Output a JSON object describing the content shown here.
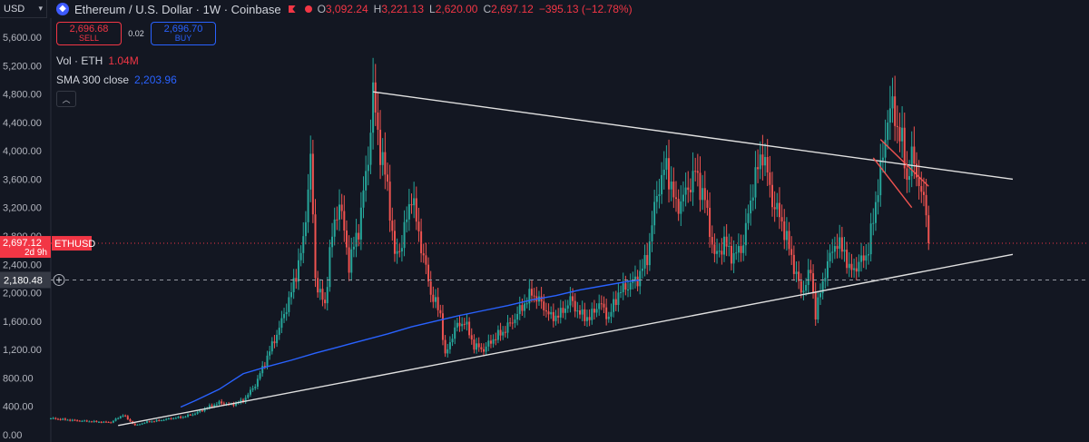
{
  "currency": {
    "label": "USD",
    "chevron_icon": "chevron-down-icon"
  },
  "header": {
    "symbol": "Ethereum / U.S. Dollar · 1W · Coinbase",
    "logo_icon": "ethereum-logo-icon",
    "flag_icon": "flag-icon",
    "ohlc": [
      {
        "label": "O",
        "value": "3,092.24"
      },
      {
        "label": "H",
        "value": "3,221.13"
      },
      {
        "label": "L",
        "value": "2,620.00"
      },
      {
        "label": "C",
        "value": "2,697.12"
      }
    ],
    "change": "−395.13 (−12.78%)"
  },
  "trade": {
    "sell_price": "2,696.68",
    "sell_label": "SELL",
    "spread": "0.02",
    "buy_price": "2,696.70",
    "buy_label": "BUY"
  },
  "indicators": {
    "volume": {
      "label": "Vol · ETH",
      "value": "1.04M"
    },
    "sma": {
      "label": "SMA 300 close",
      "value": "2,203.96"
    }
  },
  "colors": {
    "background": "#131722",
    "up": "#26a69a",
    "down": "#ef5350",
    "sma": "#2962ff",
    "price_marker": "#f23645",
    "text": "#b2b5be"
  },
  "chart_data": {
    "type": "candlestick",
    "yaxis": {
      "ticks": [
        "5,600.00",
        "5,200.00",
        "4,800.00",
        "4,400.00",
        "4,000.00",
        "3,600.00",
        "3,200.00",
        "2,800.00",
        "2,400.00",
        "2,000.00",
        "1,600.00",
        "1,200.00",
        "800.00",
        "400.00",
        "0.00"
      ],
      "values": [
        5600,
        5200,
        4800,
        4400,
        4000,
        3600,
        3200,
        2800,
        2400,
        2000,
        1600,
        1200,
        800,
        400,
        0
      ],
      "ylim": [
        0,
        5600
      ]
    },
    "price_marker": {
      "symbol": "ETHUSD",
      "value": "2,697.12",
      "countdown": "2d 9h",
      "price": 2697.12
    },
    "crosshair": {
      "value": "2,180.48",
      "price": 2180.48,
      "add_icon": "plus-circle-icon"
    },
    "anchors": [
      [
        0,
        230
      ],
      [
        10,
        200
      ],
      [
        20,
        180
      ],
      [
        25,
        175
      ],
      [
        30,
        280
      ],
      [
        35,
        130
      ],
      [
        40,
        180
      ],
      [
        45,
        200
      ],
      [
        50,
        230
      ],
      [
        55,
        250
      ],
      [
        60,
        300
      ],
      [
        65,
        380
      ],
      [
        70,
        450
      ],
      [
        75,
        420
      ],
      [
        80,
        480
      ],
      [
        85,
        700
      ],
      [
        90,
        1100
      ],
      [
        95,
        1500
      ],
      [
        100,
        2000
      ],
      [
        105,
        2700
      ],
      [
        108,
        3900
      ],
      [
        110,
        2200
      ],
      [
        114,
        1800
      ],
      [
        116,
        2600
      ],
      [
        120,
        3300
      ],
      [
        124,
        2400
      ],
      [
        128,
        2900
      ],
      [
        132,
        3900
      ],
      [
        134,
        4800
      ],
      [
        137,
        4000
      ],
      [
        140,
        3500
      ],
      [
        143,
        2500
      ],
      [
        146,
        2700
      ],
      [
        150,
        3400
      ],
      [
        152,
        3000
      ],
      [
        155,
        2500
      ],
      [
        158,
        2000
      ],
      [
        162,
        1700
      ],
      [
        164,
        1100
      ],
      [
        168,
        1500
      ],
      [
        172,
        1600
      ],
      [
        176,
        1250
      ],
      [
        180,
        1200
      ],
      [
        184,
        1350
      ],
      [
        188,
        1450
      ],
      [
        192,
        1600
      ],
      [
        196,
        1800
      ],
      [
        200,
        2000
      ],
      [
        204,
        1850
      ],
      [
        208,
        1650
      ],
      [
        212,
        1700
      ],
      [
        216,
        1900
      ],
      [
        220,
        1700
      ],
      [
        224,
        1640
      ],
      [
        228,
        1860
      ],
      [
        232,
        1650
      ],
      [
        236,
        2000
      ],
      [
        240,
        2100
      ],
      [
        244,
        2200
      ],
      [
        248,
        2500
      ],
      [
        252,
        3400
      ],
      [
        256,
        3800
      ],
      [
        260,
        3200
      ],
      [
        264,
        3400
      ],
      [
        268,
        3700
      ],
      [
        272,
        3300
      ],
      [
        276,
        2500
      ],
      [
        280,
        2700
      ],
      [
        284,
        2500
      ],
      [
        288,
        2700
      ],
      [
        292,
        3500
      ],
      [
        296,
        4000
      ],
      [
        300,
        3300
      ],
      [
        304,
        3000
      ],
      [
        308,
        2500
      ],
      [
        312,
        2000
      ],
      [
        316,
        2300
      ],
      [
        318,
        1700
      ],
      [
        322,
        2300
      ],
      [
        326,
        2700
      ],
      [
        330,
        2600
      ],
      [
        332,
        2300
      ],
      [
        336,
        2400
      ],
      [
        340,
        2600
      ],
      [
        344,
        3500
      ],
      [
        346,
        3900
      ],
      [
        348,
        4500
      ],
      [
        350,
        4600
      ],
      [
        354,
        4100
      ],
      [
        356,
        3600
      ],
      [
        358,
        3900
      ],
      [
        360,
        3700
      ],
      [
        362,
        3400
      ],
      [
        364,
        3092
      ],
      [
        365,
        2697
      ]
    ],
    "sma300": [
      [
        54,
        390
      ],
      [
        60,
        480
      ],
      [
        70,
        640
      ],
      [
        80,
        860
      ],
      [
        90,
        960
      ],
      [
        100,
        1050
      ],
      [
        110,
        1150
      ],
      [
        120,
        1240
      ],
      [
        130,
        1330
      ],
      [
        140,
        1420
      ],
      [
        150,
        1520
      ],
      [
        160,
        1600
      ],
      [
        170,
        1680
      ],
      [
        180,
        1750
      ],
      [
        190,
        1820
      ],
      [
        200,
        1900
      ],
      [
        210,
        1960
      ],
      [
        220,
        2040
      ],
      [
        230,
        2100
      ],
      [
        240,
        2160
      ],
      [
        245,
        2180
      ]
    ],
    "trendlines": [
      {
        "name": "upper-resistance-line",
        "from": [
          134,
          4830
        ],
        "to": [
          400,
          3600
        ],
        "color": "#e0e0e0"
      },
      {
        "name": "lower-support-line",
        "from": [
          28,
          130
        ],
        "to": [
          400,
          2540
        ],
        "color": "#e0e0e0"
      },
      {
        "name": "short-resistance-line",
        "from": [
          345,
          4160
        ],
        "to": [
          365,
          3500
        ],
        "color": "#ef5350"
      },
      {
        "name": "short-support-line",
        "from": [
          342,
          3900
        ],
        "to": [
          358,
          3200
        ],
        "color": "#ef5350"
      }
    ]
  }
}
